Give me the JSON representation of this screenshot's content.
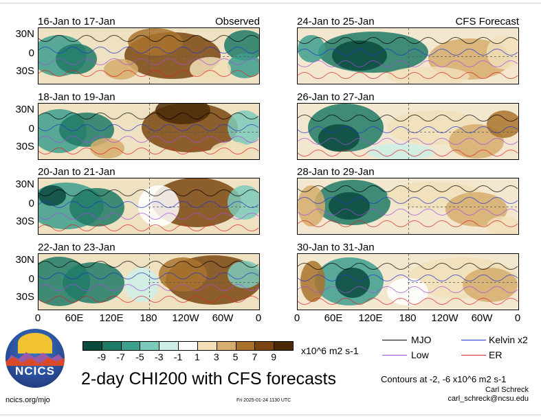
{
  "top_titles": {
    "observed": "Observed",
    "forecast": "CFS Forecast"
  },
  "panels": [
    {
      "title": "16-Jan to 17-Jan",
      "column": "left",
      "kind": "observed"
    },
    {
      "title": "18-Jan to 19-Jan",
      "column": "left",
      "kind": "observed"
    },
    {
      "title": "20-Jan to 21-Jan",
      "column": "left",
      "kind": "observed"
    },
    {
      "title": "22-Jan to 23-Jan",
      "column": "left",
      "kind": "observed"
    },
    {
      "title": "24-Jan to 25-Jan",
      "column": "right",
      "kind": "forecast"
    },
    {
      "title": "26-Jan to 27-Jan",
      "column": "right",
      "kind": "forecast"
    },
    {
      "title": "28-Jan to 29-Jan",
      "column": "right",
      "kind": "forecast"
    },
    {
      "title": "30-Jan to 31-Jan",
      "column": "right",
      "kind": "forecast"
    }
  ],
  "lat_labels": [
    "30N",
    "0",
    "30S"
  ],
  "lon_labels": [
    "0",
    "60E",
    "120E",
    "180",
    "120W",
    "60W",
    "0"
  ],
  "colorbar": {
    "colors": [
      "#0b4a3e",
      "#1f7a66",
      "#3c9e8d",
      "#7ccabb",
      "#cdeee6",
      "#ffffff",
      "#f0dfb8",
      "#d5ad6d",
      "#a9732e",
      "#7a4710",
      "#4a2a08"
    ],
    "labels": [
      "-9",
      "-7",
      "-5",
      "-3",
      "-1",
      "1",
      "3",
      "5",
      "7",
      "9"
    ],
    "units": "x10^6 m2 s-1"
  },
  "legend": [
    {
      "label": "MJO",
      "color": "#000000"
    },
    {
      "label": "Kelvin x2",
      "color": "#2233cc"
    },
    {
      "label": "Low",
      "color": "#a44be0"
    },
    {
      "label": "ER",
      "color": "#dd2222"
    }
  ],
  "contours_note": "Contours at -2, -6 x10^6 m2 s-1",
  "author": "Carl Schreck",
  "email": "carl_schreck@ncsu.edu",
  "main_title": "2-day CHI200 with CFS forecasts",
  "timestamp": "Fri 2025-01-24 1130 UTC",
  "site": "ncics.org/mjo",
  "logo_text": "NCICS",
  "chart_data": {
    "type": "heatmap",
    "title": "2-day CHI200 with CFS forecasts",
    "variable": "CHI200",
    "units": "x10^6 m2 s-1",
    "x_ticks": [
      "0",
      "60E",
      "120E",
      "180",
      "120W",
      "60W",
      "0"
    ],
    "y_ticks": [
      "30N",
      "0",
      "30S"
    ],
    "color_levels": [
      -9,
      -7,
      -5,
      -3,
      -1,
      1,
      3,
      5,
      7,
      9
    ],
    "contour_levels": [
      -2,
      -6
    ],
    "contour_series": [
      "MJO",
      "Kelvin x2",
      "Low",
      "ER"
    ],
    "panels": [
      {
        "period": "16-Jan to 17-Jan",
        "source": "Observed"
      },
      {
        "period": "18-Jan to 19-Jan",
        "source": "Observed"
      },
      {
        "period": "20-Jan to 21-Jan",
        "source": "Observed"
      },
      {
        "period": "22-Jan to 23-Jan",
        "source": "Observed"
      },
      {
        "period": "24-Jan to 25-Jan",
        "source": "CFS Forecast"
      },
      {
        "period": "26-Jan to 27-Jan",
        "source": "CFS Forecast"
      },
      {
        "period": "28-Jan to 29-Jan",
        "source": "CFS Forecast"
      },
      {
        "period": "30-Jan to 31-Jan",
        "source": "CFS Forecast"
      }
    ]
  }
}
